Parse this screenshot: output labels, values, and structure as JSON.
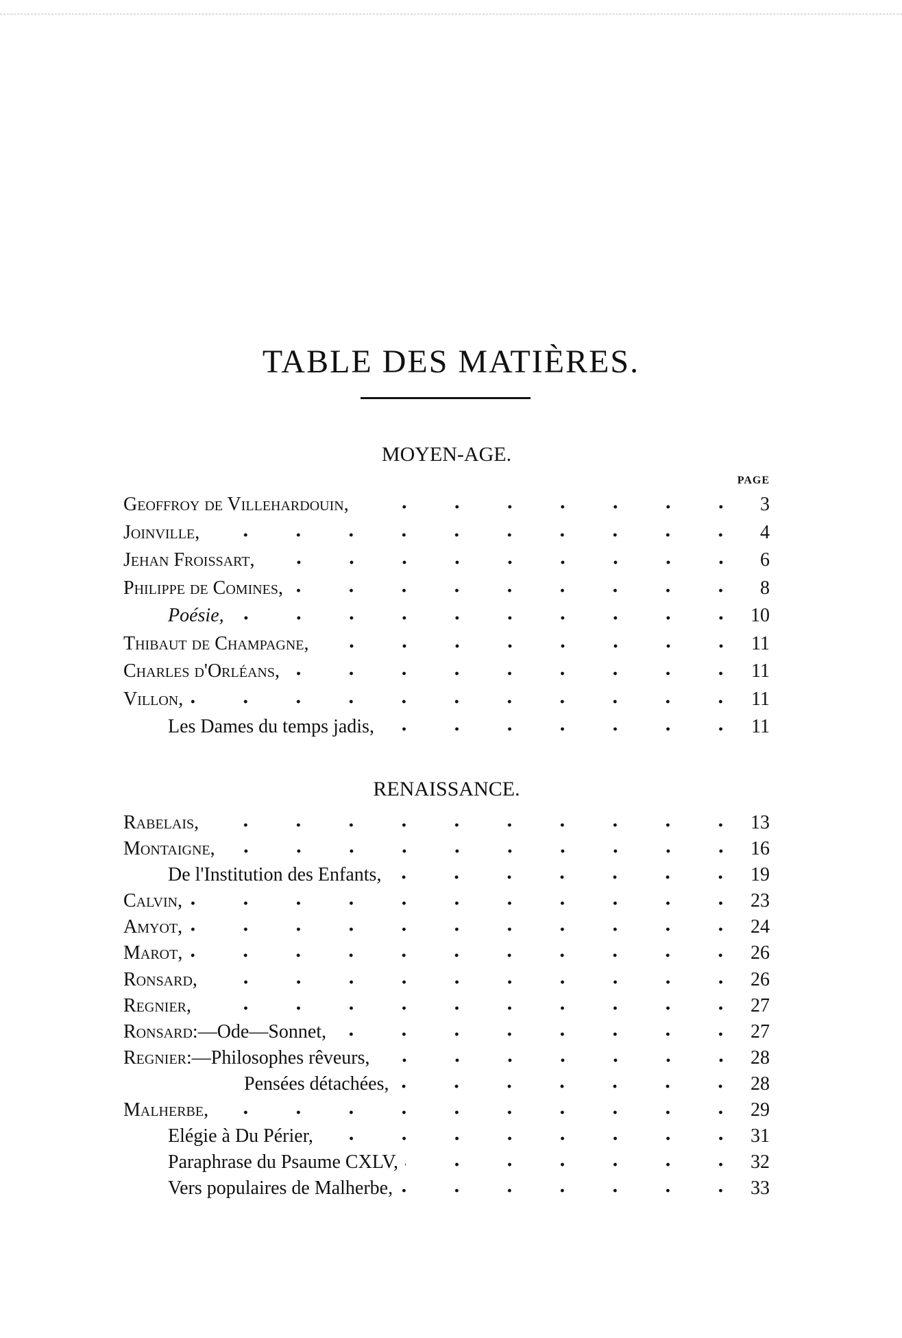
{
  "title": "TABLE DES MATIÈRES.",
  "page_label": "PAGE",
  "sections": [
    {
      "heading": "MOYEN-AGE.",
      "entries": [
        {
          "name": "Geoffroy de Villehardouin",
          "text": ",",
          "page": "3",
          "indent": 0
        },
        {
          "name": "Joinville",
          "text": ",",
          "page": "4",
          "indent": 0
        },
        {
          "name": "Jehan Froissart",
          "text": ",",
          "page": "6",
          "indent": 0
        },
        {
          "name": "Philippe de Comines",
          "text": ",",
          "page": "8",
          "indent": 0
        },
        {
          "name": "",
          "text": "Poésie,",
          "page": "10",
          "indent": 1,
          "italic": true
        },
        {
          "name": "Thibaut de Champagne",
          "text": ",",
          "page": "11",
          "indent": 0
        },
        {
          "name": "Charles d'Orléans",
          "text": ",",
          "page": "11",
          "indent": 0
        },
        {
          "name": "Villon",
          "text": ",",
          "page": "11",
          "indent": 0
        },
        {
          "name": "",
          "text": "Les Dames du temps jadis,",
          "page": "11",
          "indent": 1
        }
      ]
    },
    {
      "heading": "RENAISSANCE.",
      "entries": [
        {
          "name": "Rabelais",
          "text": ",",
          "page": "13",
          "indent": 0
        },
        {
          "name": "Montaigne",
          "text": ",",
          "page": "16",
          "indent": 0
        },
        {
          "name": "",
          "text": "De l'Institution des Enfants,",
          "page": "19",
          "indent": 1
        },
        {
          "name": "Calvin",
          "text": ",",
          "page": "23",
          "indent": 0
        },
        {
          "name": "Amyot",
          "text": ",",
          "page": "24",
          "indent": 0
        },
        {
          "name": "Marot",
          "text": ",",
          "page": "26",
          "indent": 0
        },
        {
          "name": "Ronsard",
          "text": ",",
          "page": "26",
          "indent": 0
        },
        {
          "name": "Regnier",
          "text": ",",
          "page": "27",
          "indent": 0
        },
        {
          "name": "Ronsard",
          "text": ":—Ode—Sonnet,",
          "page": "27",
          "indent": 0
        },
        {
          "name": "Regnier",
          "text": ":—Philosophes rêveurs,",
          "page": "28",
          "indent": 0
        },
        {
          "name": "",
          "text": "Pensées détachées,",
          "page": "28",
          "indent": 2
        },
        {
          "name": "Malherbe",
          "text": ",",
          "page": "29",
          "indent": 0
        },
        {
          "name": "",
          "text": "Elégie à Du Périer,",
          "page": "31",
          "indent": 1
        },
        {
          "name": "",
          "text": "Paraphrase du Psaume CXLV,",
          "page": "32",
          "indent": 1
        },
        {
          "name": "",
          "text": "Vers populaires de Malherbe,",
          "page": "33",
          "indent": 1
        }
      ]
    }
  ]
}
